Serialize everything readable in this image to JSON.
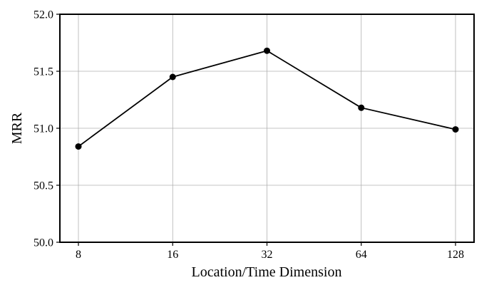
{
  "chart_data": {
    "type": "line",
    "title": "",
    "xlabel": "Location/Time Dimension",
    "ylabel": "MRR",
    "categories": [
      "8",
      "16",
      "32",
      "64",
      "128"
    ],
    "series": [
      {
        "values": [
          50.84,
          51.45,
          51.68,
          51.18,
          50.99
        ],
        "color": "#000000",
        "marker": "circle"
      }
    ],
    "ylim": [
      50.0,
      52.0
    ],
    "yticks": [
      "50.0",
      "50.5",
      "51.0",
      "51.5",
      "52.0"
    ],
    "grid": true,
    "legend": "none"
  }
}
